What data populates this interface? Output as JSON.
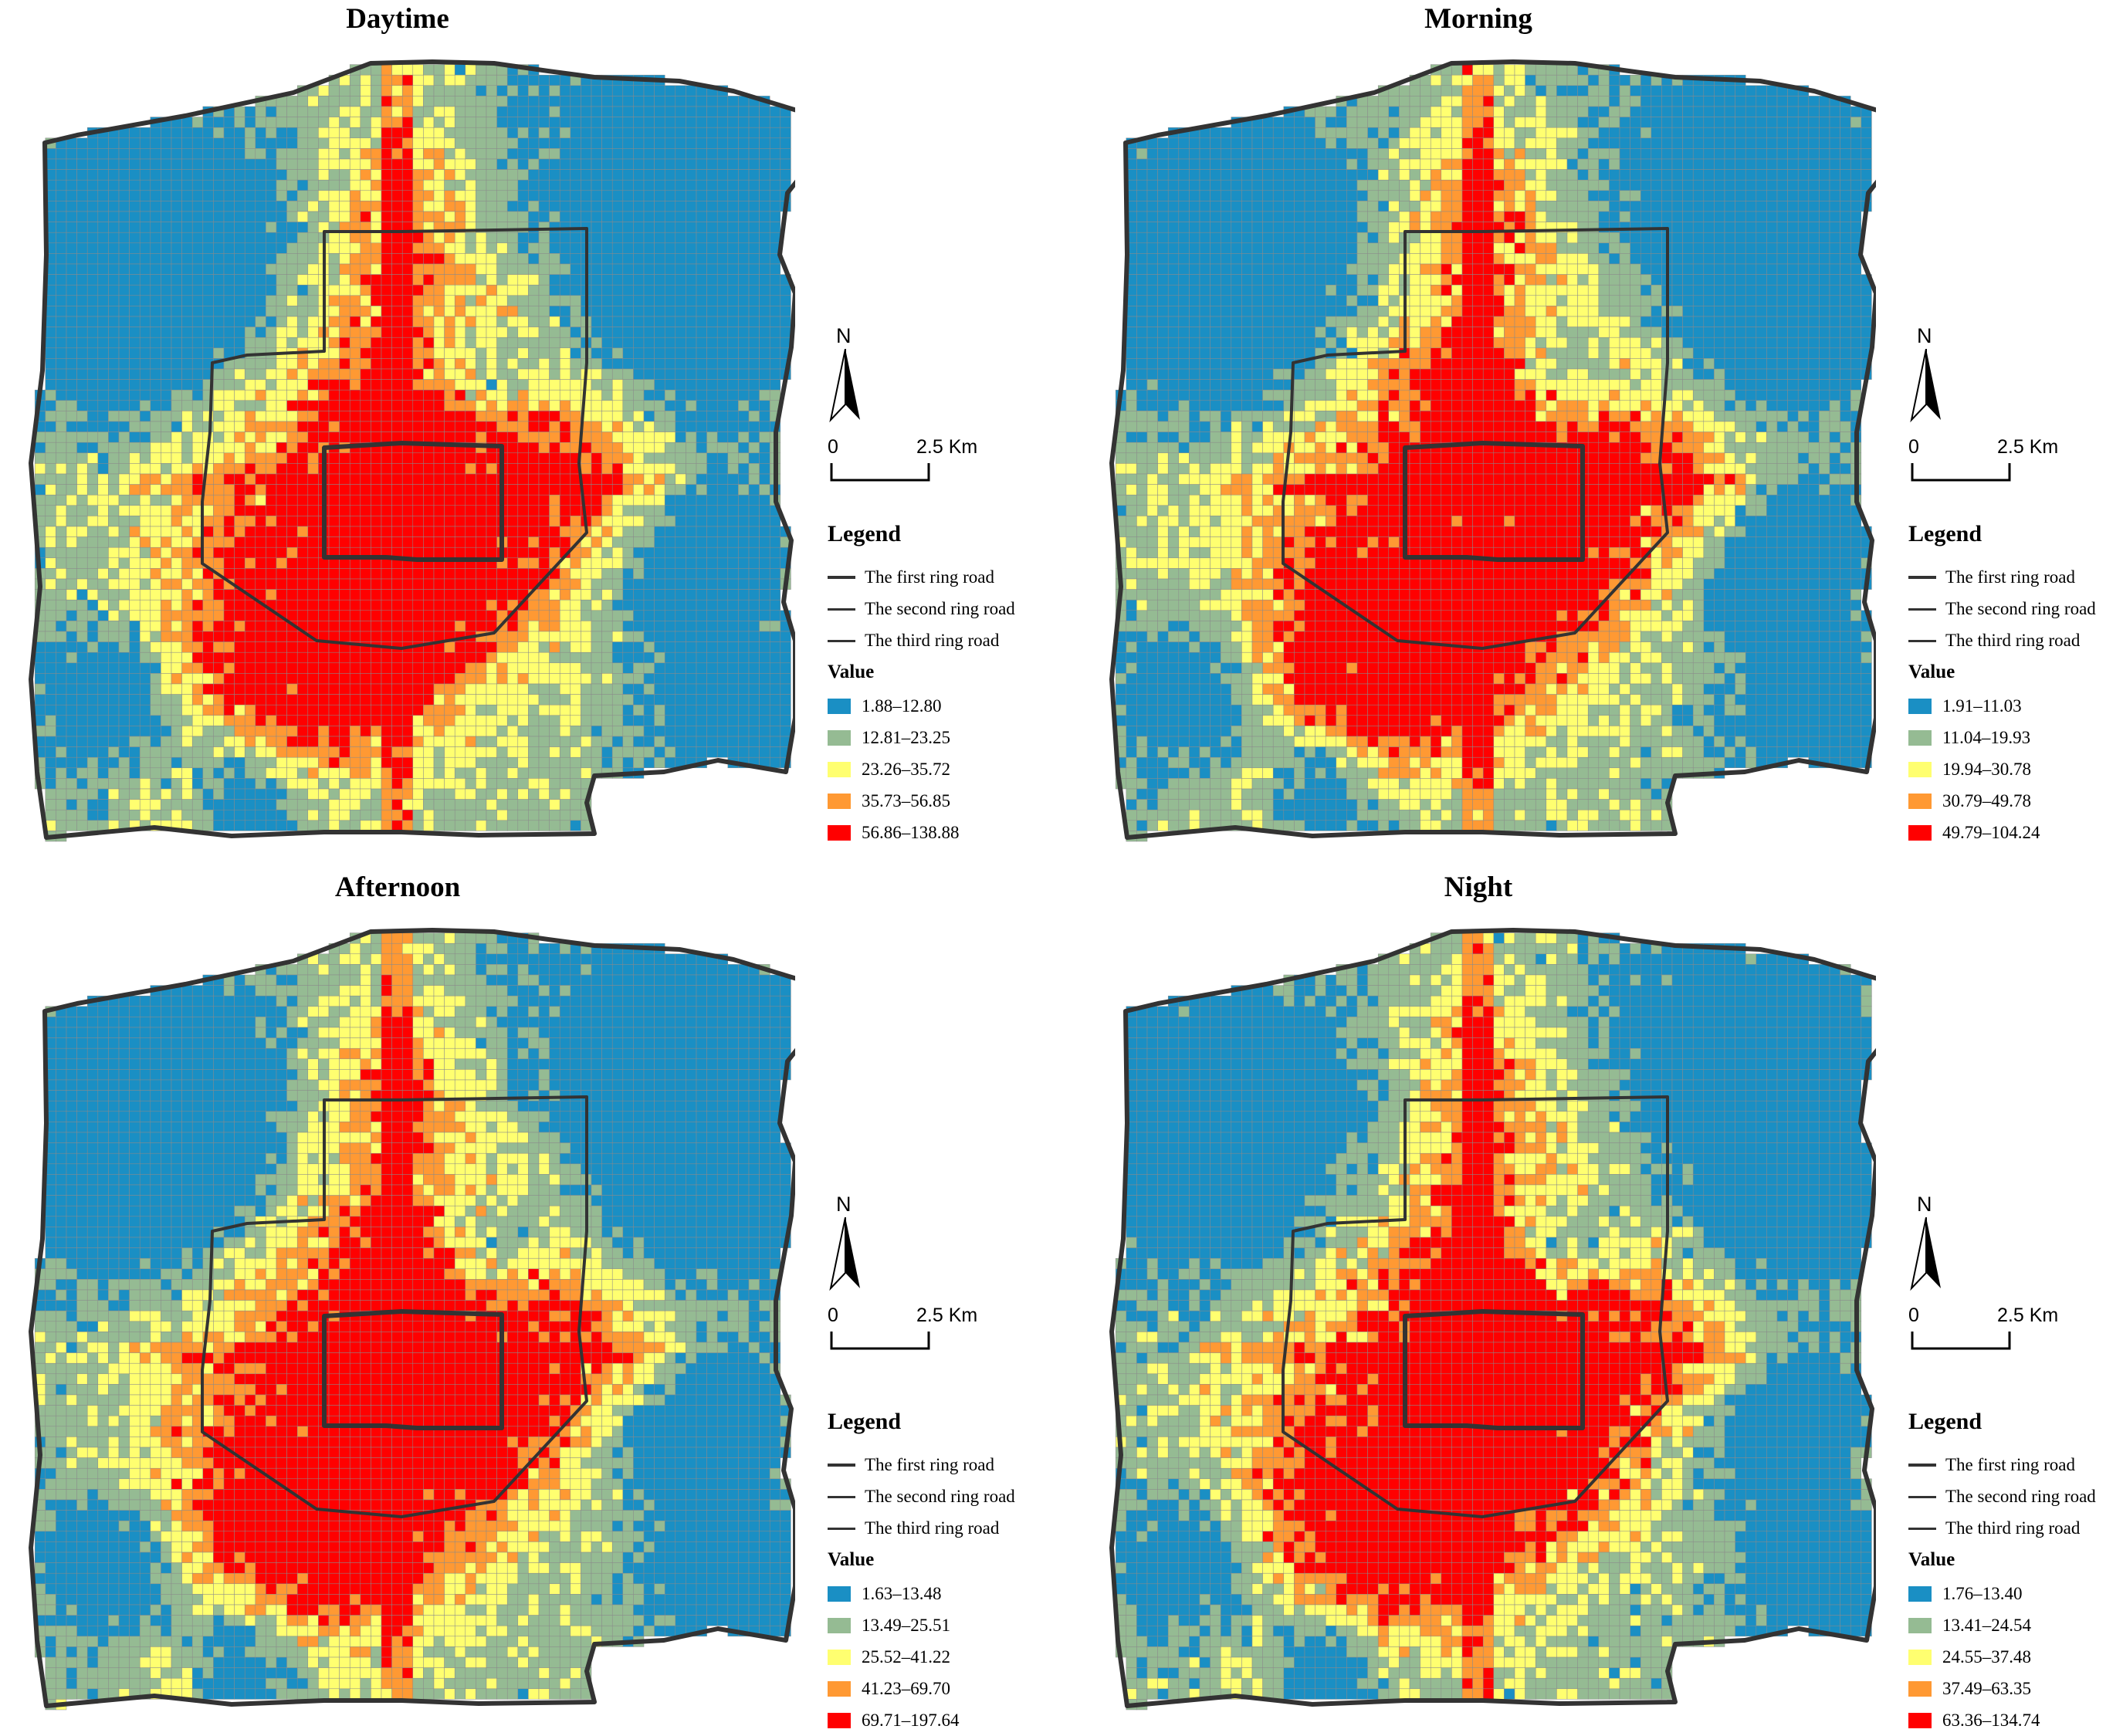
{
  "panels": [
    {
      "title": "Daytime",
      "north": "N",
      "scale": {
        "zero": "0",
        "distance": "2.5 Km"
      },
      "legend": {
        "title": "Legend",
        "roads": [
          "The first ring road",
          "The second ring road",
          "The third ring road"
        ],
        "value_title": "Value",
        "classes": [
          "1.88–12.80",
          "12.81–23.25",
          "23.26–35.72",
          "35.73–56.85",
          "56.86–138.88"
        ]
      }
    },
    {
      "title": "Morning",
      "north": "N",
      "scale": {
        "zero": "0",
        "distance": "2.5 Km"
      },
      "legend": {
        "title": "Legend",
        "roads": [
          "The first ring road",
          "The second ring road",
          "The third ring road"
        ],
        "value_title": "Value",
        "classes": [
          "1.91–11.03",
          "11.04–19.93",
          "19.94–30.78",
          "30.79–49.78",
          "49.79–104.24"
        ]
      }
    },
    {
      "title": "Afternoon",
      "north": "N",
      "scale": {
        "zero": "0",
        "distance": "2.5 Km"
      },
      "legend": {
        "title": "Legend",
        "roads": [
          "The first ring road",
          "The second ring road",
          "The third ring road"
        ],
        "value_title": "Value",
        "classes": [
          "1.63–13.48",
          "13.49–25.51",
          "25.52–41.22",
          "41.23–69.70",
          "69.71–197.64"
        ]
      }
    },
    {
      "title": "Night",
      "north": "N",
      "scale": {
        "zero": "0",
        "distance": "2.5 Km"
      },
      "legend": {
        "title": "Legend",
        "roads": [
          "The first ring road",
          "The second ring road",
          "The third ring road"
        ],
        "value_title": "Value",
        "classes": [
          "1.76–13.40",
          "13.41–24.54",
          "24.55–37.48",
          "37.49–63.35",
          "63.36–134.74"
        ]
      }
    }
  ],
  "class_colors": [
    "#1a8fc4",
    "#95bb93",
    "#ffff70",
    "#ff9933",
    "#ff0000"
  ],
  "road_color": "#333333"
}
